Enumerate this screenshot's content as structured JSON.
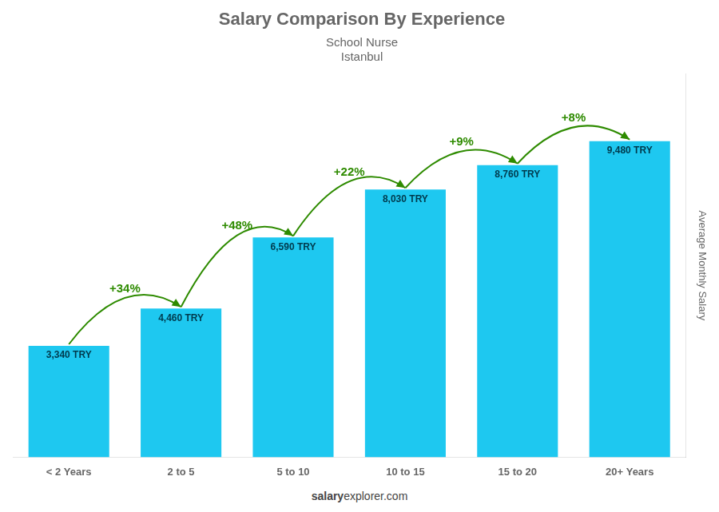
{
  "chart_data": {
    "type": "bar",
    "title": "Salary Comparison By Experience",
    "subtitle": [
      "School Nurse",
      "Istanbul"
    ],
    "y_label": "Average Monthly Salary",
    "categories": [
      "< 2 Years",
      "2 to 5",
      "5 to 10",
      "10 to 15",
      "15 to 20",
      "20+ Years"
    ],
    "values": [
      3340,
      4460,
      6590,
      8030,
      8760,
      9480
    ],
    "value_labels": [
      "3,340 TRY",
      "4,460 TRY",
      "6,590 TRY",
      "8,030 TRY",
      "8,760 TRY",
      "9,480 TRY"
    ],
    "data_labels": true,
    "annotations": [
      "+34%",
      "+48%",
      "+22%",
      "+9%",
      "+8%"
    ],
    "footer": [
      "salary",
      "explorer.com"
    ],
    "color": "#1ec8f0",
    "ylim": [
      0,
      11500
    ],
    "grid": false,
    "tick_labels": "x"
  }
}
